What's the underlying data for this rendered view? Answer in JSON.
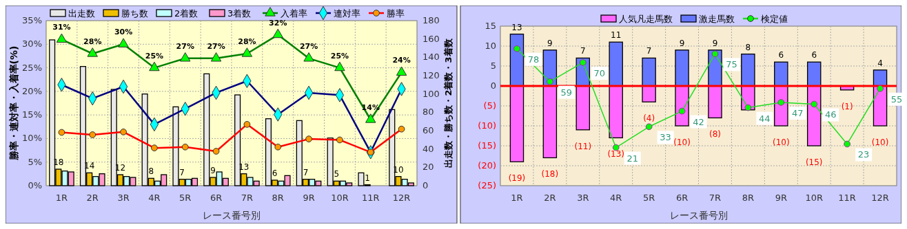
{
  "chart_data": [
    {
      "type": "bar",
      "categories": [
        "1R",
        "2R",
        "3R",
        "4R",
        "5R",
        "6R",
        "7R",
        "8R",
        "9R",
        "10R",
        "11R",
        "12R"
      ],
      "xlabel": "レース番号別",
      "ylabel": "勝率・連対率・入着率(%)",
      "y2label": "出走数・勝ち数・2着数・3着数",
      "ylim": [
        0,
        35
      ],
      "yticks": [
        {
          "value": 0,
          "label": "0%"
        },
        {
          "value": 5,
          "label": "5%"
        },
        {
          "value": 10,
          "label": "10%"
        },
        {
          "value": 15,
          "label": "15%"
        },
        {
          "value": 20,
          "label": "20%"
        },
        {
          "value": 25,
          "label": "25%"
        },
        {
          "value": 30,
          "label": "30%"
        },
        {
          "value": 35,
          "label": "35%"
        }
      ],
      "y2lim": [
        0,
        180
      ],
      "y2ticks": [
        0,
        20,
        40,
        60,
        80,
        100,
        120,
        140,
        160,
        180
      ],
      "grid": true,
      "legend": "top",
      "series": [
        {
          "name": "出走数",
          "axis": "y2",
          "color": "#e8e8e8",
          "values": [
            159,
            130,
            105,
            100,
            86,
            122,
            99,
            73,
            71,
            52,
            14,
            83
          ]
        },
        {
          "name": "勝ち数",
          "axis": "y2",
          "color": "#f0c000",
          "values": [
            18,
            14,
            12,
            8,
            7,
            9,
            13,
            6,
            7,
            5,
            1,
            10
          ],
          "value_labels": [
            "18",
            "14",
            "12",
            "8",
            "7",
            "9",
            "13",
            "6",
            "7",
            "5",
            "1",
            "10"
          ]
        },
        {
          "name": "2着数",
          "axis": "y2",
          "color": "#c0ffff",
          "values": [
            16,
            10,
            10,
            5,
            7,
            15,
            9,
            5,
            7,
            5,
            0,
            7
          ]
        },
        {
          "name": "3着数",
          "axis": "y2",
          "color": "#ff99cc",
          "values": [
            15,
            13,
            9,
            12,
            8,
            8,
            5,
            11,
            5,
            3,
            0,
            3
          ]
        },
        {
          "name": "入着率",
          "type": "line",
          "color": "#008000",
          "marker": "triangle",
          "values": [
            31,
            28,
            30,
            25,
            27,
            27,
            28,
            32,
            27,
            25,
            14,
            24
          ],
          "value_labels": [
            "31%",
            "28%",
            "30%",
            "25%",
            "27%",
            "27%",
            "28%",
            "32%",
            "27%",
            "25%",
            "14%",
            "24%"
          ]
        },
        {
          "name": "連対率",
          "type": "line",
          "color": "#000080",
          "marker": "diamond",
          "values": [
            21.4,
            18.5,
            21.0,
            13.0,
            16.3,
            19.7,
            22.2,
            15.1,
            19.7,
            19.2,
            7.1,
            20.5
          ]
        },
        {
          "name": "勝率",
          "type": "line",
          "color": "#ff0000",
          "marker": "circle",
          "values": [
            11.3,
            10.8,
            11.4,
            8.0,
            8.2,
            7.3,
            13.0,
            8.2,
            9.9,
            9.7,
            7.1,
            12.0
          ]
        }
      ]
    },
    {
      "type": "bar",
      "stacked": true,
      "categories": [
        "1R",
        "2R",
        "3R",
        "4R",
        "5R",
        "6R",
        "7R",
        "8R",
        "9R",
        "10R",
        "11R",
        "12R"
      ],
      "xlabel": "レース番号別",
      "ylim": [
        -25,
        15
      ],
      "yticks": [
        15,
        10,
        5,
        0,
        {
          "value": -5,
          "label": "(5)"
        },
        {
          "value": -10,
          "label": "(10)"
        },
        {
          "value": -15,
          "label": "(15)"
        },
        {
          "value": -20,
          "label": "(20)"
        },
        {
          "value": -25,
          "label": "(25)"
        }
      ],
      "y2lim": [
        -1,
        91
      ],
      "tick_labels": "xy",
      "grid": true,
      "legend": "top",
      "ref_lines": [
        {
          "axis": "y",
          "value": 0,
          "color": "#ff0000"
        }
      ],
      "series": [
        {
          "name": "人気凡走馬数",
          "color": "#ff66ff",
          "values": [
            -19,
            -18,
            -11,
            -13,
            -4,
            -10,
            -8,
            -6,
            -10,
            -15,
            -1,
            -10
          ],
          "value_labels": [
            "(19)",
            "(18)",
            "(11)",
            "(13)",
            "(4)",
            "(10)",
            "(8)",
            null,
            "(10)",
            "(15)",
            "(1)",
            "(10)"
          ]
        },
        {
          "name": "激走馬数",
          "color": "#6677ff",
          "values": [
            13,
            9,
            7,
            11,
            7,
            9,
            9,
            8,
            6,
            6,
            0,
            4
          ],
          "value_labels": [
            "13",
            "9",
            "7",
            "11",
            "7",
            "9",
            "9",
            "8",
            "6",
            "6",
            null,
            "4"
          ]
        },
        {
          "name": "検定値",
          "type": "line",
          "axis": "y2",
          "color": "#22dd22",
          "marker": "circle",
          "values": [
            78,
            59,
            70,
            21,
            33,
            42,
            75,
            44,
            47,
            46,
            23,
            55
          ],
          "value_labels": [
            "78",
            "59",
            "70",
            "21",
            "33",
            "42",
            "75",
            "44",
            "47",
            "46",
            "23",
            "55"
          ]
        }
      ]
    }
  ]
}
